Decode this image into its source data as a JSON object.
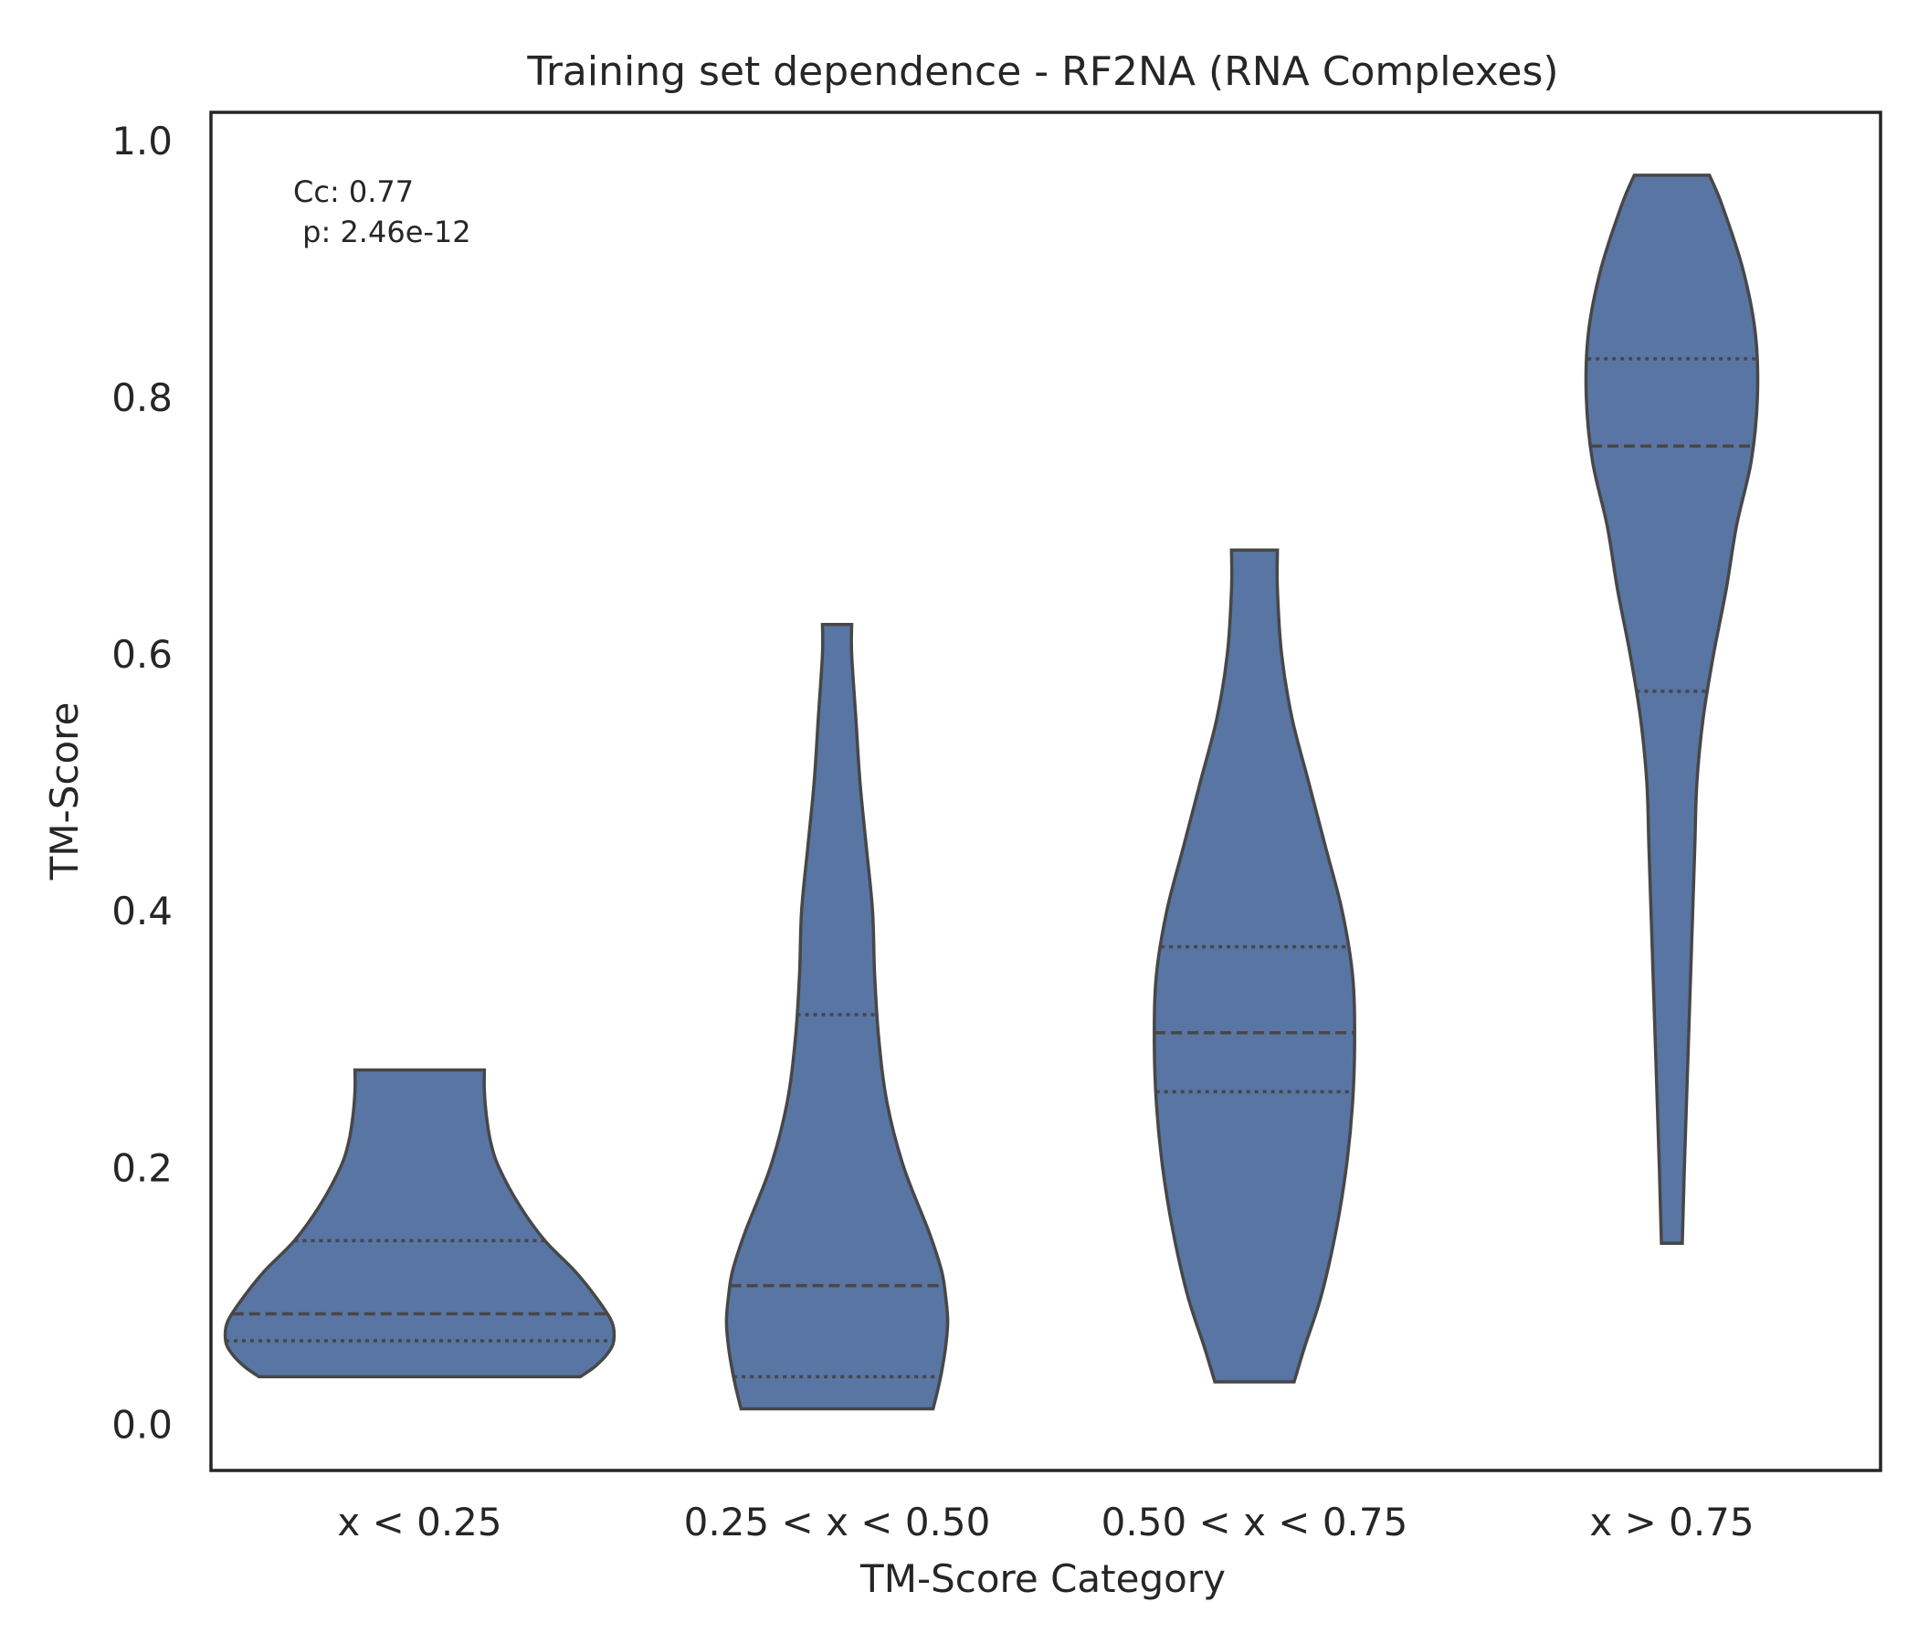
{
  "chart_data": {
    "type": "violin",
    "title": "Training set dependence - RF2NA (RNA Complexes)",
    "xlabel": "TM-Score Category",
    "ylabel": "TM-Score",
    "ylim": [
      -0.036,
      1.022
    ],
    "yticks": [
      "0.0",
      "0.2",
      "0.4",
      "0.6",
      "0.8",
      "1.0"
    ],
    "grid": false,
    "fill_color": "#5875a4",
    "edge_color": "#474747",
    "annotation": {
      "line1": "Cc: 0.77",
      "line2": " p: 2.46e-12"
    },
    "categories": [
      "x < 0.25",
      "0.25 < x < 0.50",
      "0.50 < x < 0.75",
      "x > 0.75"
    ],
    "violins": [
      {
        "category": "x < 0.25",
        "min": 0.037,
        "max": 0.276,
        "q1": 0.065,
        "median": 0.086,
        "q3": 0.143,
        "profile": [
          [
            0.037,
            0.385
          ],
          [
            0.045,
            0.42
          ],
          [
            0.055,
            0.45
          ],
          [
            0.065,
            0.465
          ],
          [
            0.08,
            0.46
          ],
          [
            0.1,
            0.42
          ],
          [
            0.12,
            0.37
          ],
          [
            0.143,
            0.3
          ],
          [
            0.17,
            0.24
          ],
          [
            0.2,
            0.19
          ],
          [
            0.22,
            0.17
          ],
          [
            0.24,
            0.16
          ],
          [
            0.26,
            0.155
          ],
          [
            0.276,
            0.155
          ]
        ]
      },
      {
        "category": "0.25 < x < 0.50",
        "min": 0.012,
        "max": 0.623,
        "q1": 0.037,
        "median": 0.108,
        "q3": 0.319,
        "profile": [
          [
            0.012,
            0.23
          ],
          [
            0.025,
            0.24
          ],
          [
            0.04,
            0.25
          ],
          [
            0.06,
            0.26
          ],
          [
            0.08,
            0.265
          ],
          [
            0.1,
            0.26
          ],
          [
            0.12,
            0.25
          ],
          [
            0.15,
            0.22
          ],
          [
            0.2,
            0.16
          ],
          [
            0.25,
            0.12
          ],
          [
            0.3,
            0.1
          ],
          [
            0.35,
            0.09
          ],
          [
            0.4,
            0.085
          ],
          [
            0.45,
            0.07
          ],
          [
            0.5,
            0.055
          ],
          [
            0.55,
            0.045
          ],
          [
            0.6,
            0.035
          ],
          [
            0.623,
            0.035
          ]
        ]
      },
      {
        "category": "0.50 < x < 0.75",
        "min": 0.033,
        "max": 0.681,
        "q1": 0.259,
        "median": 0.305,
        "q3": 0.372,
        "profile": [
          [
            0.033,
            0.095
          ],
          [
            0.06,
            0.12
          ],
          [
            0.1,
            0.16
          ],
          [
            0.15,
            0.195
          ],
          [
            0.2,
            0.22
          ],
          [
            0.25,
            0.235
          ],
          [
            0.3,
            0.24
          ],
          [
            0.35,
            0.235
          ],
          [
            0.4,
            0.21
          ],
          [
            0.45,
            0.17
          ],
          [
            0.5,
            0.13
          ],
          [
            0.55,
            0.09
          ],
          [
            0.6,
            0.065
          ],
          [
            0.65,
            0.055
          ],
          [
            0.681,
            0.055
          ]
        ]
      },
      {
        "category": "x > 0.75",
        "min": 0.141,
        "max": 0.973,
        "q1": 0.571,
        "median": 0.762,
        "q3": 0.83,
        "profile": [
          [
            0.141,
            0.025
          ],
          [
            0.2,
            0.03
          ],
          [
            0.3,
            0.04
          ],
          [
            0.4,
            0.05
          ],
          [
            0.45,
            0.055
          ],
          [
            0.5,
            0.06
          ],
          [
            0.55,
            0.075
          ],
          [
            0.6,
            0.1
          ],
          [
            0.65,
            0.13
          ],
          [
            0.7,
            0.155
          ],
          [
            0.75,
            0.19
          ],
          [
            0.8,
            0.205
          ],
          [
            0.85,
            0.2
          ],
          [
            0.9,
            0.17
          ],
          [
            0.95,
            0.12
          ],
          [
            0.973,
            0.09
          ]
        ]
      }
    ]
  }
}
